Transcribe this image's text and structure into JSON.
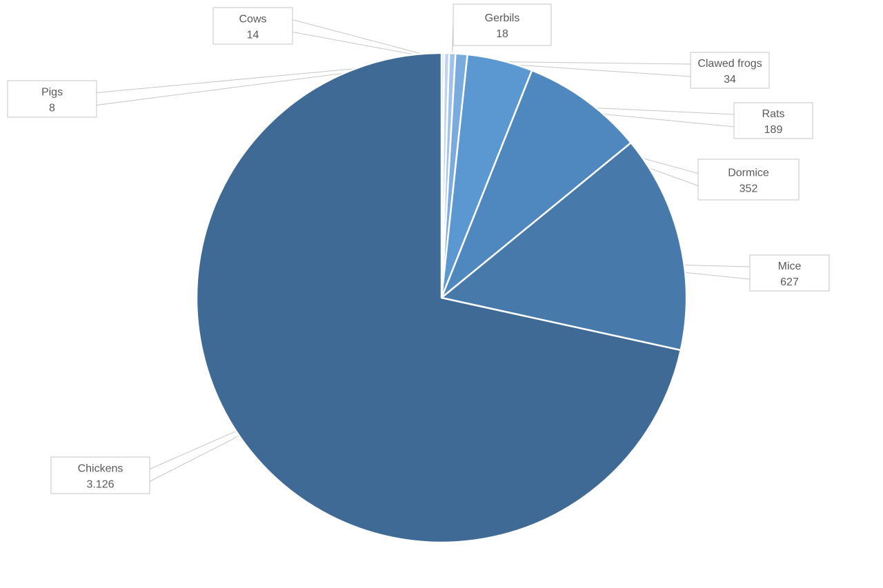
{
  "chart_data": {
    "type": "pie",
    "categories": [
      "Pigs",
      "Cows",
      "Gerbils",
      "Clawed frogs",
      "Rats",
      "Dormice",
      "Mice",
      "Chickens"
    ],
    "values": [
      8,
      14,
      18,
      34,
      189,
      352,
      627,
      3126
    ],
    "value_labels": [
      "8",
      "14",
      "18",
      "34",
      "189",
      "352",
      "627",
      "3.126"
    ],
    "start_angle": "12 o'clock",
    "direction": "clockwise",
    "legend": "none",
    "data_labels": "category name and value in callout boxes with leader lines",
    "colors": [
      "#cfe0f4",
      "#bcd4ef",
      "#9ec2ea",
      "#7aabdf",
      "#5b97d1",
      "#4f88be",
      "#477aab",
      "#3f6a95"
    ]
  }
}
